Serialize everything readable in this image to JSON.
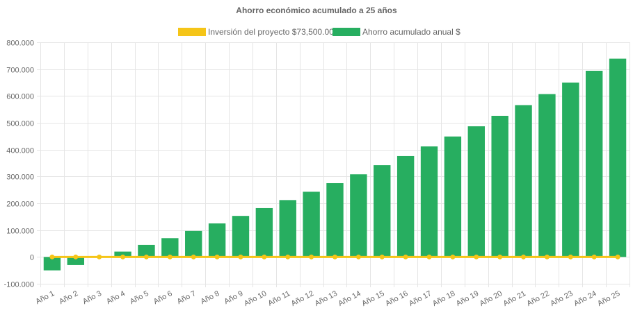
{
  "chart_data": {
    "type": "bar",
    "title": "Ahorro económico acumulado a 25 años",
    "legend_position": "top",
    "grid": true,
    "ylim": [
      -100000,
      800000
    ],
    "y_ticks": [
      "800.000",
      "700.000",
      "600.000",
      "500.000",
      "400.000",
      "300.000",
      "200.000",
      "100.000",
      "0",
      "-100.000"
    ],
    "y_tick_values": [
      800000,
      700000,
      600000,
      500000,
      400000,
      300000,
      200000,
      100000,
      0,
      -100000
    ],
    "categories": [
      "Año 1",
      "Año 2",
      "Año 3",
      "Año 4",
      "Año 5",
      "Año 6",
      "Año 7",
      "Año 8",
      "Año 9",
      "Año 10",
      "Año 11",
      "Año 12",
      "Año 13",
      "Año 14",
      "Año 15",
      "Año 16",
      "Año 17",
      "Año 18",
      "Año 19",
      "Año 20",
      "Año 21",
      "Año 22",
      "Año 23",
      "Año 24",
      "Año 25"
    ],
    "series": [
      {
        "name": "Inversión del proyecto $73,500.00",
        "type": "line",
        "color": "#f5c518",
        "values": [
          0,
          0,
          0,
          0,
          0,
          0,
          0,
          0,
          0,
          0,
          0,
          0,
          0,
          0,
          0,
          0,
          0,
          0,
          0,
          0,
          0,
          0,
          0,
          0,
          0
        ]
      },
      {
        "name": "Ahorro acumulado anual $",
        "type": "bar",
        "color": "#27ae60",
        "values": [
          -50000,
          -30000,
          -2000,
          20000,
          45000,
          70000,
          97000,
          125000,
          153000,
          182000,
          212000,
          243000,
          275000,
          308000,
          342000,
          376000,
          412000,
          449000,
          487000,
          526000,
          566000,
          607000,
          650000,
          694000,
          739000
        ]
      }
    ]
  }
}
